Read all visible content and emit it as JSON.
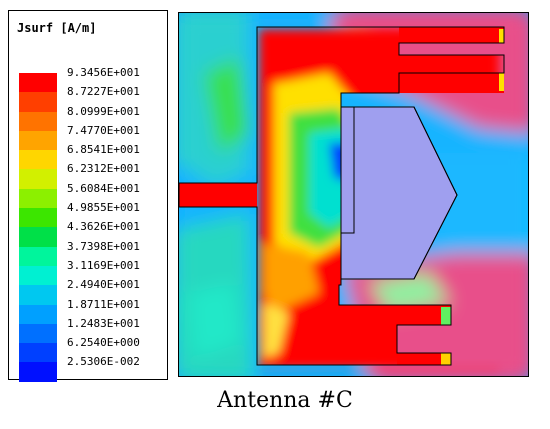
{
  "legend": {
    "title": "Jsurf [A/m]",
    "colors": [
      "#ff0000",
      "#ff3f00",
      "#ff7300",
      "#ffa400",
      "#ffd600",
      "#d2f000",
      "#8cf000",
      "#3ce600",
      "#00e048",
      "#00f59c",
      "#00f0d2",
      "#00c8f0",
      "#00a0ff",
      "#0070ff",
      "#0040ff",
      "#0010ff"
    ],
    "values": [
      "9.3456E+001",
      "8.7227E+001",
      "8.0999E+001",
      "7.4770E+001",
      "6.8541E+001",
      "6.2312E+001",
      "5.6084E+001",
      "4.9855E+001",
      "4.3626E+001",
      "3.7398E+001",
      "3.1169E+001",
      "2.4940E+001",
      "1.8711E+001",
      "1.2483E+001",
      "6.2540E+000",
      "2.5306E-002"
    ]
  },
  "caption": "Antenna #C",
  "colors": {
    "conductor_max": "#ff0000",
    "background_field": "#e8508a",
    "feed_patch": "#9f9fef",
    "outline": "#000000"
  }
}
